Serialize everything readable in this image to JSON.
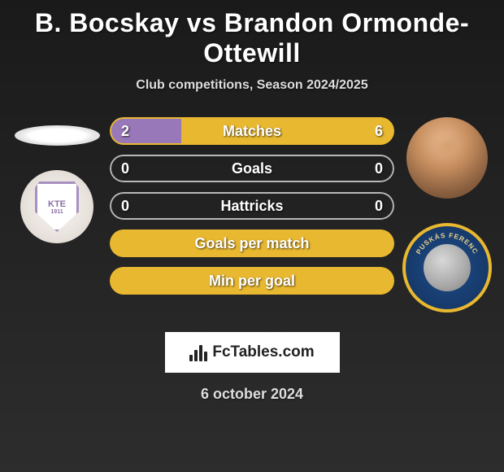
{
  "title": "B. Bocskay vs Brandon Ormonde-Ottewill",
  "subtitle": "Club competitions, Season 2024/2025",
  "date": "6 october 2024",
  "watermark": "FcTables.com",
  "colors": {
    "left_accent": "#9878b8",
    "right_accent": "#e8b830",
    "neutral_border": "#b8b8b8"
  },
  "left_club": {
    "code": "KTE",
    "year": "1911"
  },
  "right_club": {
    "ring_top": "PUSKÁS FERENC"
  },
  "stats": [
    {
      "label": "Matches",
      "left_val": "2",
      "right_val": "6",
      "left_pct": 25,
      "right_pct": 75,
      "border_color": "#e8b830",
      "left_fill": "#9878b8",
      "right_fill": "#e8b830"
    },
    {
      "label": "Goals",
      "left_val": "0",
      "right_val": "0",
      "left_pct": 0,
      "right_pct": 0,
      "border_color": "#b8b8b8",
      "left_fill": "#9878b8",
      "right_fill": "#e8b830"
    },
    {
      "label": "Hattricks",
      "left_val": "0",
      "right_val": "0",
      "left_pct": 0,
      "right_pct": 0,
      "border_color": "#b8b8b8",
      "left_fill": "#9878b8",
      "right_fill": "#e8b830"
    },
    {
      "label": "Goals per match",
      "left_val": "",
      "right_val": "",
      "left_pct": 0,
      "right_pct": 0,
      "border_color": "#e8b830",
      "left_fill": "#9878b8",
      "right_fill": "#e8b830",
      "full_fill": true
    },
    {
      "label": "Min per goal",
      "left_val": "",
      "right_val": "",
      "left_pct": 0,
      "right_pct": 0,
      "border_color": "#e8b830",
      "left_fill": "#9878b8",
      "right_fill": "#e8b830",
      "full_fill": true
    }
  ]
}
